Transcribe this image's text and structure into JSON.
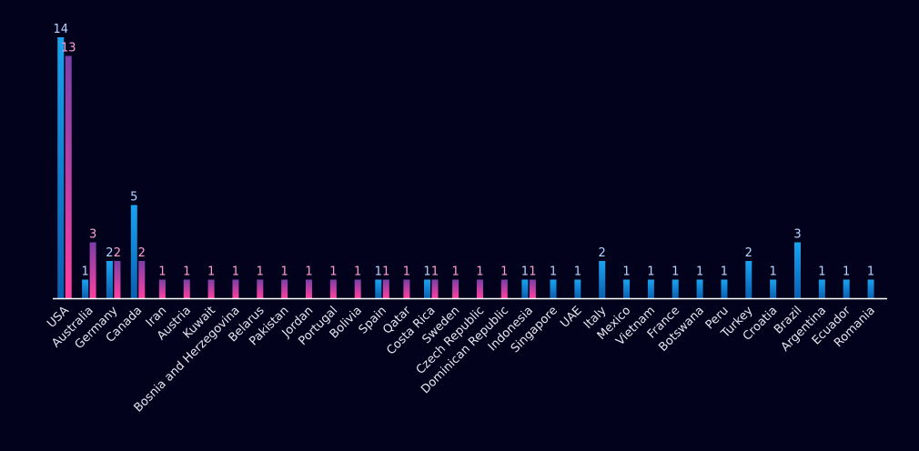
{
  "chart_data": {
    "type": "bar",
    "categories": [
      "USA",
      "Australia",
      "Germany",
      "Canada",
      "Iran",
      "Austria",
      "Kuwait",
      "Bosnia and Herzegovina",
      "Belarus",
      "Pakistan",
      "Jordan",
      "Portugal",
      "Bolivia",
      "Spain",
      "Qatar",
      "Costa Rica",
      "Sweden",
      "Czech Republic",
      "Dominican Republic",
      "Indonesia",
      "Singapore",
      "UAE",
      "Italy",
      "Mexico",
      "Vietnam",
      "France",
      "Botswana",
      "Peru",
      "Turkey",
      "Croatia",
      "Brazil",
      "Argentina",
      "Ecuador",
      "Romania"
    ],
    "series": [
      {
        "values": [
          14,
          1,
          2,
          5,
          null,
          null,
          null,
          null,
          null,
          null,
          null,
          null,
          null,
          1,
          null,
          1,
          null,
          null,
          null,
          1,
          1,
          1,
          2,
          1,
          1,
          1,
          1,
          1,
          2,
          1,
          3,
          1,
          1,
          1
        ],
        "color_top": "#1aa3f0",
        "color_bottom": "#0a5fb0",
        "label_color": "#b8d4ff"
      },
      {
        "values": [
          13,
          3,
          2,
          2,
          1,
          1,
          1,
          1,
          1,
          1,
          1,
          1,
          1,
          1,
          1,
          1,
          1,
          1,
          1,
          1,
          null,
          null,
          null,
          null,
          null,
          null,
          null,
          null,
          null,
          null,
          null,
          null,
          null,
          null
        ],
        "color_top": "#7b3fa8",
        "color_bottom": "#ff3fa0",
        "label_color": "#ff9ed0"
      }
    ],
    "ylim": [
      0,
      14
    ],
    "axis_color": "#ffffff",
    "grid": false,
    "legend": "none"
  }
}
